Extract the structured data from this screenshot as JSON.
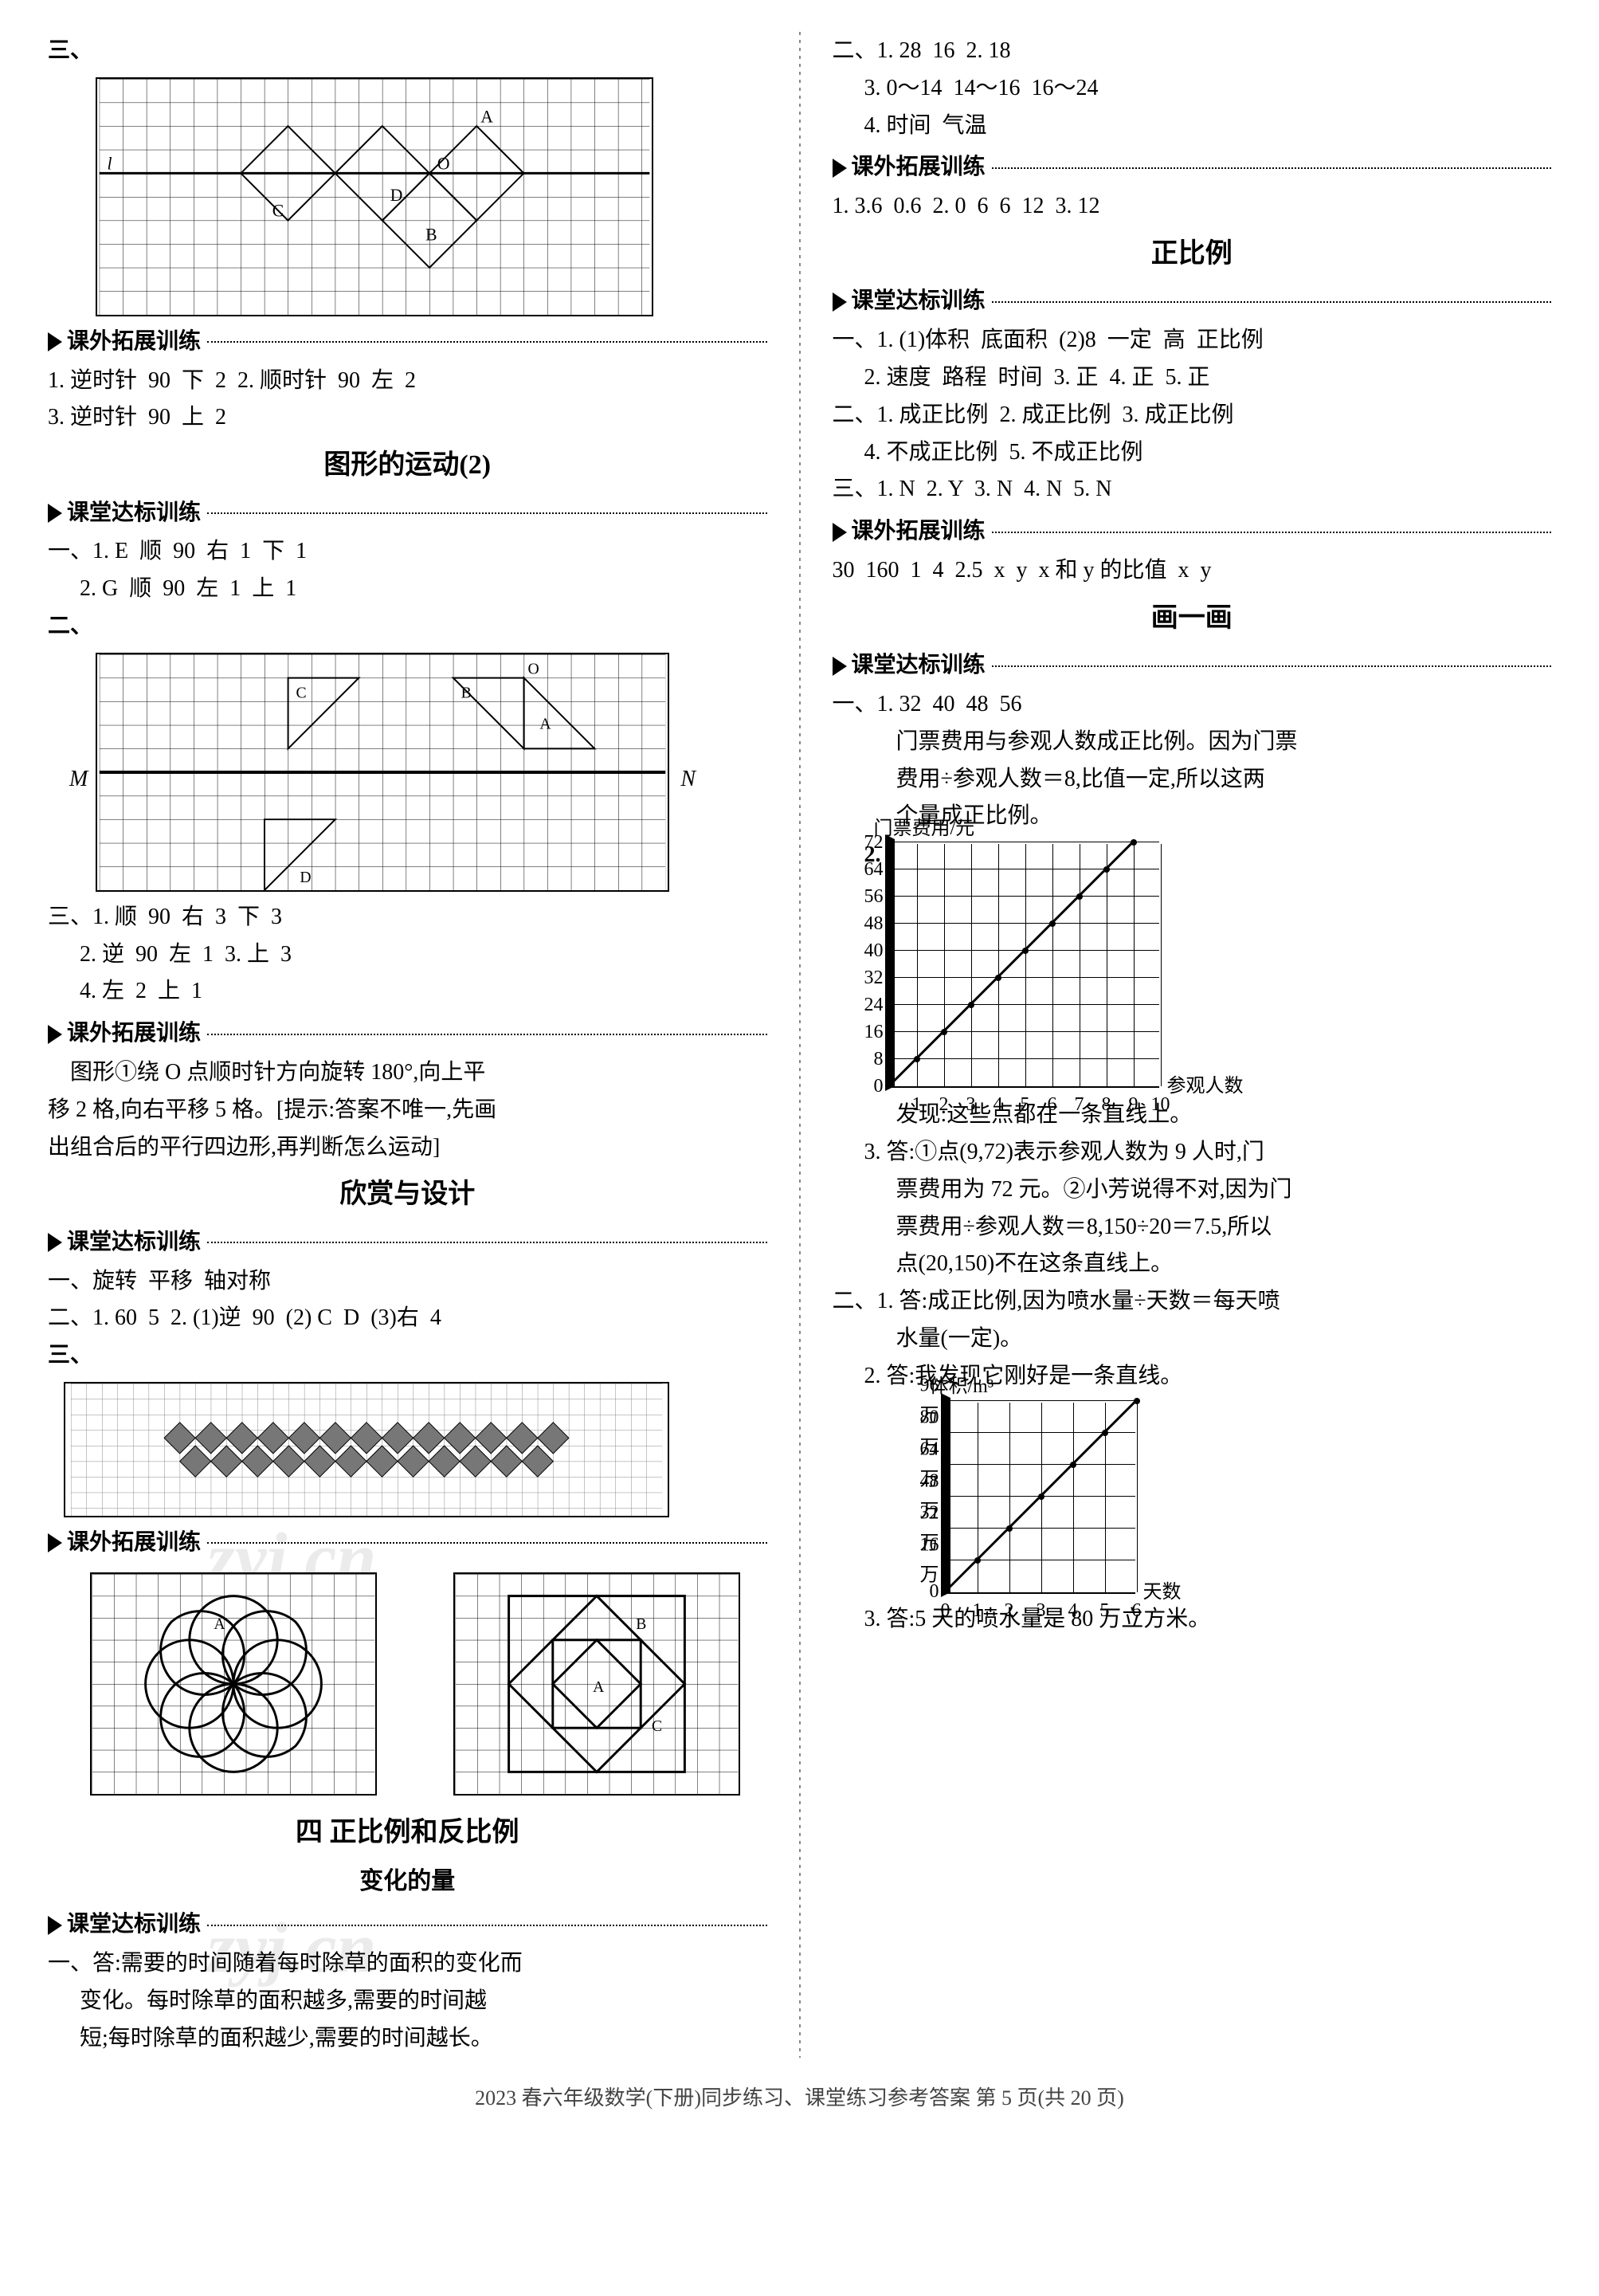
{
  "left": {
    "fig1_marker": "三、",
    "fig1_labels": [
      "A",
      "B",
      "C",
      "D",
      "O",
      "l"
    ],
    "sh1": "课外拓展训练",
    "l1": "1. 逆时针  90  下  2  2. 顺时针  90  左  2",
    "l2": "3. 逆时针  90  上  2",
    "t1": "图形的运动(2)",
    "sh2": "课堂达标训练",
    "l3": "一、1. E  顺  90  右  1  下  1",
    "l4": "2. G  顺  90  左  1  上  1",
    "fig2_marker": "二、",
    "fig2_labels": [
      "A",
      "B",
      "C",
      "D",
      "M",
      "N",
      "O"
    ],
    "l5": "三、1. 顺  90  右  3  下  3",
    "l6": "2. 逆  90  左  1  3. 上  3",
    "l7": "4. 左  2  上  1",
    "sh3": "课外拓展训练",
    "l8": "    图形①绕 O 点顺时针方向旋转 180°,向上平",
    "l9": "移 2 格,向右平移 5 格。[提示:答案不唯一,先画",
    "l10": "出组合后的平行四边形,再判断怎么运动]",
    "t2": "欣赏与设计",
    "sh4": "课堂达标训练",
    "l11": "一、旋转  平移  轴对称",
    "l12": "二、1. 60  5  2. (1)逆  90  (2) C  D  (3)右  4",
    "fig3_marker": "三、",
    "sh5": "课外拓展训练",
    "fig4_labels": [
      "A",
      "B",
      "C"
    ],
    "t3": "四  正比例和反比例",
    "st3": "变化的量",
    "sh6": "课堂达标训练",
    "l13": "一、答:需要的时间随着每时除草的面积的变化而",
    "l14": "变化。每时除草的面积越多,需要的时间越",
    "l15": "短;每时除草的面积越少,需要的时间越长。",
    "watermark1": "zyj.cn",
    "watermark2": "zyj.cn"
  },
  "right": {
    "l1": "二、1. 28  16  2. 18",
    "l2": "3. 0～14  14～16  16～24",
    "l3": "4. 时间  气温",
    "sh1": "课外拓展训练",
    "l4": "1. 3.6  0.6  2. 0  6  6  12  3. 12",
    "t1": "正比例",
    "sh2": "课堂达标训练",
    "l5": "一、1. (1)体积  底面积  (2)8  一定  高  正比例",
    "l6": "2. 速度  路程  时间  3. 正  4. 正  5. 正",
    "l7": "二、1. 成正比例  2. 成正比例  3. 成正比例",
    "l8": "4. 不成正比例  5. 不成正比例",
    "l9": "三、1. N  2. Y  3. N  4. N  5. N",
    "sh3": "课外拓展训练",
    "l10": "30  160  1  4  2.5  x  y  x 和 y 的比值  x  y",
    "t2": "画一画",
    "sh4": "课堂达标训练",
    "l11": "一、1. 32  40  48  56",
    "l12": "门票费用与参观人数成正比例。因为门票",
    "l13": "费用÷参观人数＝8,比值一定,所以这两",
    "l14": "个量成正比例。",
    "l15_marker": "2.",
    "chart1": {
      "type": "line",
      "title_y": "门票费用/元",
      "title_x": "参观人数",
      "x_values": [
        1,
        2,
        3,
        4,
        5,
        6,
        7,
        8,
        9,
        10
      ],
      "y_ticks": [
        0,
        8,
        16,
        24,
        32,
        40,
        48,
        56,
        64,
        72
      ],
      "y_max": 72,
      "x_max": 10,
      "line_points": [
        [
          0,
          0
        ],
        [
          9,
          72
        ]
      ],
      "grid_color": "#000000",
      "line_color": "#000000",
      "cell": 34
    },
    "l16": "发现:这些点都在一条直线上。",
    "l17": "3. 答:①点(9,72)表示参观人数为 9 人时,门",
    "l18": "票费用为 72 元。②小芳说得不对,因为门",
    "l19": "票费用÷参观人数＝8,150÷20＝7.5,所以",
    "l20": "点(20,150)不在这条直线上。",
    "l21": "二、1. 答:成正比例,因为喷水量÷天数＝每天喷",
    "l22": "水量(一定)。",
    "l23": "2. 答:我发现它刚好是一条直线。",
    "chart2": {
      "type": "line",
      "title_y": "体积/m³",
      "title_x": "天数",
      "x_values": [
        0,
        1,
        2,
        3,
        4,
        5,
        6
      ],
      "y_ticks_labels": [
        "0",
        "16 万",
        "32 万",
        "48 万",
        "64 万",
        "80 万",
        "96 万"
      ],
      "y_ticks": [
        0,
        16,
        32,
        48,
        64,
        80,
        96
      ],
      "y_max": 96,
      "x_max": 6,
      "line_points": [
        [
          0,
          0
        ],
        [
          6,
          96
        ]
      ],
      "grid_color": "#000000",
      "line_color": "#000000",
      "cell": 40
    },
    "l24": "3. 答:5 天的喷水量是 80 万立方米。"
  },
  "footer": "2023 春六年级数学(下册)同步练习、课堂练习参考答案  第 5 页(共 20 页)"
}
